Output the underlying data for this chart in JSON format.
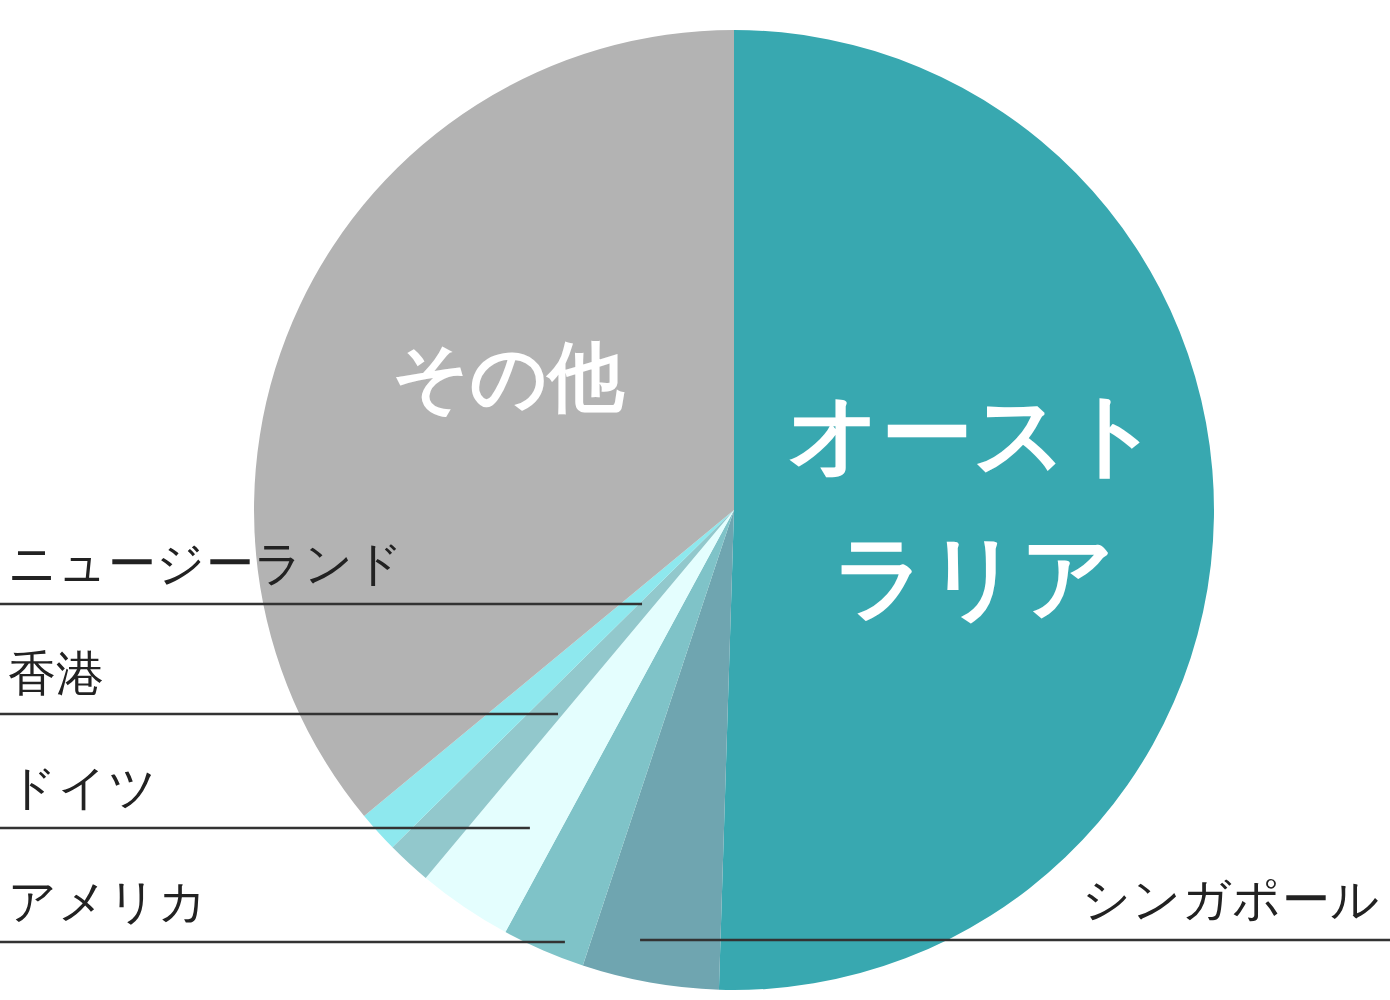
{
  "chart_data": {
    "type": "pie",
    "categories": [
      "オーストラリア",
      "シンガポール",
      "アメリカ",
      "ドイツ",
      "香港",
      "ニュージーランド",
      "その他"
    ],
    "values": [
      50.5,
      4.6,
      2.8,
      3.2,
      1.5,
      1.4,
      36.0
    ],
    "colors": [
      "#38a8b0",
      "#6fa5b0",
      "#7fc3c8",
      "#e4fefe",
      "#92c8cc",
      "#8ee8ee",
      "#b3b3b3"
    ],
    "legend": false
  }
}
